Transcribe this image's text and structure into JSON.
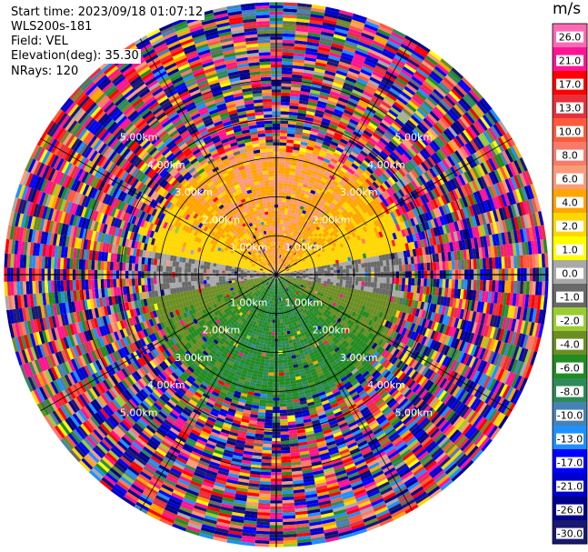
{
  "header": {
    "start_time": "Start time: 2023/09/18 01:07:12",
    "instrument": "WLS200s-181",
    "field": "Field: VEL",
    "elevation": "Elevation(deg): 35.30",
    "nrays": "NRays: 120"
  },
  "colorbar": {
    "unit": "m/s",
    "ticks": [
      "26.0",
      "21.0",
      "17.0",
      "13.0",
      "10.0",
      "8.0",
      "6.0",
      "4.0",
      "2.0",
      "1.0",
      "0.0",
      "-1.0",
      "-2.0",
      "-4.0",
      "-6.0",
      "-8.0",
      "-10.0",
      "-13.0",
      "-17.0",
      "-21.0",
      "-26.0",
      "-30.0"
    ],
    "colors": [
      "#ff69b4",
      "#ff1493",
      "#ff0000",
      "#e8303a",
      "#ff5a3c",
      "#f87a6a",
      "#fa9b7a",
      "#ffa500",
      "#ffd700",
      "#ffff00",
      "#a9a9a9",
      "#696969",
      "#9acd32",
      "#6b8e23",
      "#228b22",
      "#2e8b57",
      "#4682b4",
      "#1e90ff",
      "#0000ff",
      "#0000cd",
      "#00008b",
      "#191970"
    ]
  },
  "chart_data": {
    "type": "heatmap",
    "projection": "PPI (plan position indicator)",
    "field": "VEL",
    "units": "m/s",
    "nrays": 120,
    "elevation_deg": 35.3,
    "range_rings_km": [
      1.0,
      2.0,
      3.0,
      4.0,
      5.0
    ],
    "ring_labels_km": [
      "1.00km",
      "2.00km",
      "3.00km",
      "4.00km",
      "5.00km"
    ],
    "spokes_deg": [
      0,
      30,
      60,
      90,
      120,
      150,
      180,
      210,
      240,
      270,
      300,
      330
    ],
    "velocity_pattern": {
      "north_sector_m_s": [
        2.0,
        8.0
      ],
      "south_sector_m_s": [
        -8.0,
        -2.0
      ],
      "east_west_sector_m_s": [
        -1.0,
        1.0
      ],
      "noise_beyond_km": 3.0
    },
    "colorbar_range": [
      -30.0,
      26.0
    ]
  }
}
